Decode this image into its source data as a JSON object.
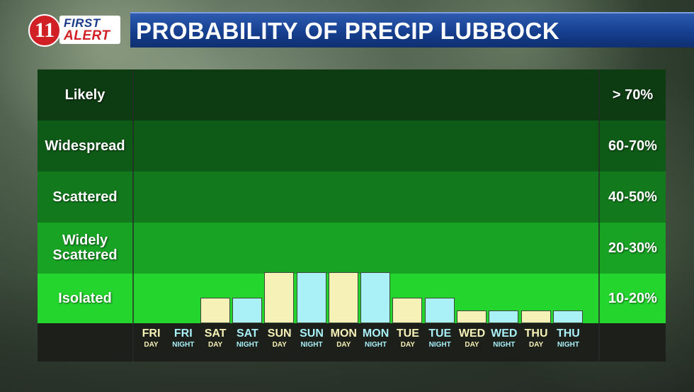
{
  "header": {
    "logo_number": "11",
    "logo_first": "FIRST",
    "logo_alert": "ALERT",
    "title": "PROBABILITY OF PRECIP LUBBOCK"
  },
  "colors": {
    "day_bar": "#f6f1b7",
    "night_bar": "#a9f0f7",
    "band_likely": "#0d3b12",
    "band_widespread": "#0e5a17",
    "band_scattered": "#127a1d",
    "band_widely_scattered": "#18a324",
    "band_isolated": "#24d52e"
  },
  "chart_data": {
    "type": "bar",
    "title": "PROBABILITY OF PRECIP LUBBOCK",
    "bands": [
      {
        "label": "Likely",
        "range": "> 70%"
      },
      {
        "label": "Widespread",
        "range": "60-70%"
      },
      {
        "label": "Scattered",
        "range": "40-50%"
      },
      {
        "label": "Widely Scattered",
        "range": "20-30%"
      },
      {
        "label": "Isolated",
        "range": "10-20%"
      }
    ],
    "categories": [
      {
        "day": "FRI",
        "period": "DAY"
      },
      {
        "day": "FRI",
        "period": "NIGHT"
      },
      {
        "day": "SAT",
        "period": "DAY"
      },
      {
        "day": "SAT",
        "period": "NIGHT"
      },
      {
        "day": "SUN",
        "period": "DAY"
      },
      {
        "day": "SUN",
        "period": "NIGHT"
      },
      {
        "day": "MON",
        "period": "DAY"
      },
      {
        "day": "MON",
        "period": "NIGHT"
      },
      {
        "day": "TUE",
        "period": "DAY"
      },
      {
        "day": "TUE",
        "period": "NIGHT"
      },
      {
        "day": "WED",
        "period": "DAY"
      },
      {
        "day": "WED",
        "period": "NIGHT"
      },
      {
        "day": "THU",
        "period": "DAY"
      },
      {
        "day": "THU",
        "period": "NIGHT"
      }
    ],
    "values": [
      0,
      0,
      0.5,
      0.5,
      1.0,
      1.0,
      1.0,
      1.0,
      0.5,
      0.5,
      0.25,
      0.25,
      0.25,
      0.25
    ],
    "value_units": "fraction of the Isolated band",
    "ylim": [
      0,
      5
    ],
    "grid": false,
    "legend": "none"
  }
}
